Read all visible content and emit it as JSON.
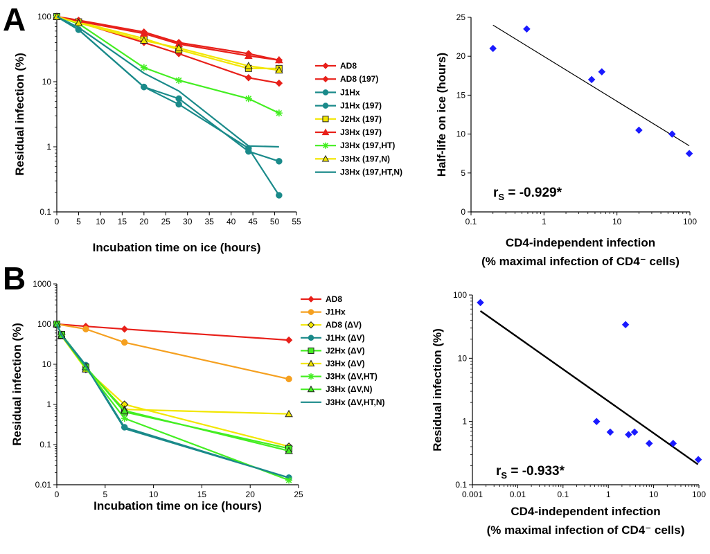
{
  "figure": {
    "panels": [
      {
        "letter": "A"
      },
      {
        "letter": "B"
      }
    ]
  },
  "chart_data": [
    {
      "type": "line",
      "panel": "A",
      "xlabel": "Incubation time on ice (hours)",
      "ylabel": "Residual infection (%)",
      "xlim": [
        0,
        55
      ],
      "xticks": [
        0,
        5,
        10,
        15,
        20,
        25,
        30,
        35,
        40,
        45,
        50,
        55
      ],
      "ylim": [
        0.1,
        100
      ],
      "yscale": "log",
      "yticks": [
        0.1,
        1,
        10,
        100
      ],
      "legend_position": "right",
      "series": [
        {
          "name": "AD8",
          "color": "#e8201a",
          "marker": "diamond",
          "x": [
            0,
            5,
            20,
            28,
            44,
            51
          ],
          "y": [
            100,
            88,
            58,
            40,
            27,
            21.5
          ]
        },
        {
          "name": "AD8 (197)",
          "color": "#e8201a",
          "marker": "diamond",
          "x": [
            0,
            5,
            20,
            28,
            44,
            51
          ],
          "y": [
            100,
            82,
            40,
            27,
            11.5,
            9.5
          ]
        },
        {
          "name": "J1Hx",
          "color": "#1a8a8a",
          "marker": "circle",
          "x": [
            0,
            5,
            20,
            28,
            44,
            51
          ],
          "y": [
            100,
            63,
            8.3,
            5.5,
            0.85,
            0.6
          ]
        },
        {
          "name": "J1Hx (197)",
          "color": "#1a8a8a",
          "marker": "circle",
          "x": [
            0,
            5,
            20,
            28,
            44,
            51
          ],
          "y": [
            100,
            63,
            8.3,
            4.5,
            0.95,
            0.18
          ]
        },
        {
          "name": "J2Hx (197)",
          "color": "#f2e600",
          "marker": "square",
          "x": [
            0,
            5,
            20,
            28,
            44,
            51
          ],
          "y": [
            100,
            83,
            46,
            31,
            16,
            16
          ]
        },
        {
          "name": "J3Hx (197)",
          "color": "#e8201a",
          "marker": "triangle",
          "x": [
            0,
            5,
            20,
            28,
            44,
            51
          ],
          "y": [
            100,
            85,
            55,
            38,
            25,
            21.5
          ]
        },
        {
          "name": "J3Hx (197,HT)",
          "color": "#44ee22",
          "marker": "asterisk",
          "x": [
            0,
            5,
            20,
            28,
            44,
            51
          ],
          "y": [
            100,
            78,
            16.5,
            10.5,
            5.5,
            3.3
          ]
        },
        {
          "name": "J3Hx (197,N)",
          "color": "#f2e600",
          "marker": "triangle",
          "x": [
            0,
            5,
            20,
            28,
            44,
            51
          ],
          "y": [
            100,
            80,
            43,
            33,
            17.5,
            15
          ]
        },
        {
          "name": "J3Hx (197,HT,N)",
          "color": "#1a8a8a",
          "marker": "none",
          "x": [
            0,
            5,
            20,
            28,
            44,
            51
          ],
          "y": [
            100,
            68,
            13.5,
            7.2,
            1.03,
            1.0
          ]
        }
      ]
    },
    {
      "type": "scatter",
      "panel": "A",
      "xlabel": "CD4-independent infection",
      "xlabel_line2": "(% maximal infection of CD4⁻ cells)",
      "ylabel": "Half-life on ice (hours)",
      "xscale": "log",
      "xlim": [
        0.1,
        100
      ],
      "xticks": [
        0.1,
        1,
        10,
        100
      ],
      "ylim": [
        0,
        25
      ],
      "yticks": [
        0,
        5,
        10,
        15,
        20,
        25
      ],
      "points": [
        {
          "x": 0.2,
          "y": 21
        },
        {
          "x": 0.58,
          "y": 23.5
        },
        {
          "x": 4.5,
          "y": 17
        },
        {
          "x": 6.2,
          "y": 18
        },
        {
          "x": 20,
          "y": 10.5
        },
        {
          "x": 57,
          "y": 10
        },
        {
          "x": 98,
          "y": 7.5
        }
      ],
      "trendline": {
        "x": [
          0.2,
          98
        ],
        "y": [
          24,
          8.5
        ]
      },
      "annotation": {
        "prefix": "r",
        "subscript": "S",
        "value": " = -0.929*"
      }
    },
    {
      "type": "line",
      "panel": "B",
      "xlabel": "Incubation time on ice (hours)",
      "ylabel": "Residual infection (%)",
      "xlim": [
        0,
        25
      ],
      "xticks": [
        0,
        5,
        10,
        15,
        20,
        25
      ],
      "ylim": [
        0.01,
        1000
      ],
      "yscale": "log",
      "yticks": [
        0.01,
        0.1,
        1,
        10,
        100,
        1000
      ],
      "legend_position": "top-right",
      "series": [
        {
          "name": "AD8",
          "color": "#e8201a",
          "marker": "diamond",
          "x": [
            0,
            3,
            7,
            24
          ],
          "y": [
            100,
            88,
            75,
            40
          ]
        },
        {
          "name": "J1Hx",
          "color": "#f5a020",
          "marker": "circle",
          "x": [
            0,
            3,
            7,
            24
          ],
          "y": [
            100,
            75,
            35,
            4.3
          ]
        },
        {
          "name": "AD8 (ΔV)",
          "color": "#f2e600",
          "marker": "diamond",
          "x": [
            0,
            0.5,
            3,
            7,
            24
          ],
          "y": [
            100,
            55,
            7.5,
            1.0,
            0.09
          ]
        },
        {
          "name": "J1Hx (ΔV)",
          "color": "#1a8a8a",
          "marker": "circle",
          "x": [
            0,
            0.5,
            3,
            7,
            24
          ],
          "y": [
            100,
            55,
            9.5,
            0.27,
            0.015
          ]
        },
        {
          "name": "J2Hx (ΔV)",
          "color": "#44ee22",
          "marker": "square",
          "x": [
            0,
            0.5,
            3,
            7,
            24
          ],
          "y": [
            100,
            55,
            8.5,
            0.65,
            0.08
          ]
        },
        {
          "name": "J3Hx (ΔV)",
          "color": "#f2e600",
          "marker": "triangle",
          "x": [
            0,
            0.5,
            3,
            7,
            24
          ],
          "y": [
            100,
            50,
            7.5,
            0.75,
            0.58
          ]
        },
        {
          "name": "J3Hx (ΔV,HT)",
          "color": "#44ee22",
          "marker": "asterisk",
          "x": [
            0,
            0.5,
            3,
            7,
            24
          ],
          "y": [
            100,
            52,
            8.0,
            0.45,
            0.013
          ]
        },
        {
          "name": "J3Hx (ΔV,N)",
          "color": "#44ee22",
          "marker": "triangle",
          "x": [
            0,
            0.5,
            3,
            7,
            24
          ],
          "y": [
            100,
            52,
            8.5,
            0.7,
            0.07
          ]
        },
        {
          "name": "J3Hx (ΔV,HT,N)",
          "color": "#1a8a8a",
          "marker": "none",
          "x": [
            0,
            0.5,
            3,
            7,
            24
          ],
          "y": [
            100,
            52,
            9.0,
            0.25,
            0.015
          ]
        }
      ]
    },
    {
      "type": "scatter",
      "panel": "B",
      "xlabel": "CD4-independent infection",
      "xlabel_line2": "(% maximal infection of CD4⁻ cells)",
      "ylabel": "Residual infection (%)",
      "xscale": "log",
      "yscale": "log",
      "xlim": [
        0.001,
        100
      ],
      "xticks": [
        0.001,
        0.01,
        0.1,
        1,
        10,
        100
      ],
      "ylim": [
        0.1,
        100
      ],
      "yticks": [
        0.1,
        1,
        10,
        100
      ],
      "points": [
        {
          "x": 0.0015,
          "y": 76
        },
        {
          "x": 0.55,
          "y": 1.0
        },
        {
          "x": 1.1,
          "y": 0.68
        },
        {
          "x": 2.4,
          "y": 34
        },
        {
          "x": 2.8,
          "y": 0.62
        },
        {
          "x": 3.8,
          "y": 0.68
        },
        {
          "x": 8,
          "y": 0.45
        },
        {
          "x": 27,
          "y": 0.45
        },
        {
          "x": 97,
          "y": 0.25
        }
      ],
      "trendline": {
        "x": [
          0.0015,
          95
        ],
        "y": [
          56,
          0.21
        ]
      },
      "annotation": {
        "prefix": "r",
        "subscript": "S",
        "value": " = -0.933*"
      }
    }
  ]
}
